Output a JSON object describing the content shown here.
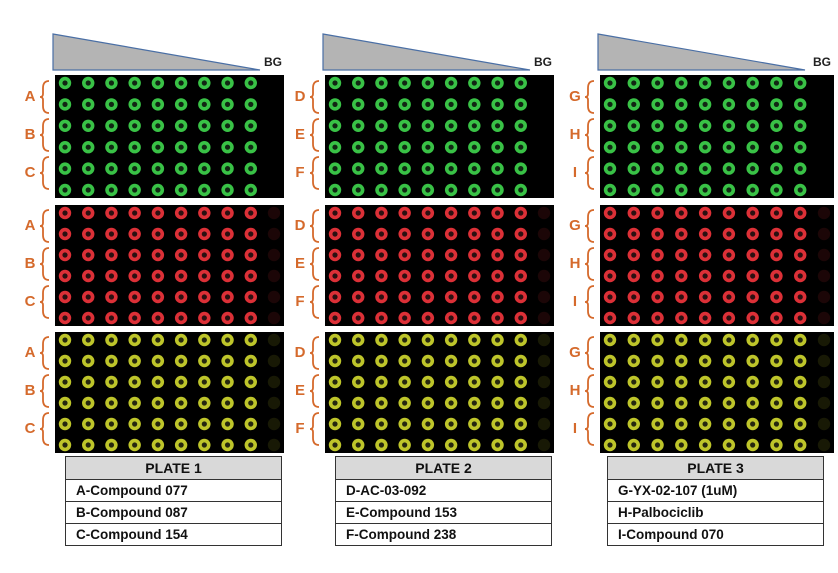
{
  "background_label": "BG",
  "colors": {
    "label_orange": "#d56a2c",
    "green_well": "#3ccc4a",
    "red_well": "#e8333a",
    "merge_well": "#c8d02c",
    "gradient_fill": "#b4b4b4",
    "gradient_edge": "#4a6fa5"
  },
  "plates": [
    {
      "title": "PLATE 1",
      "groups": [
        "A",
        "B",
        "C"
      ],
      "compounds": [
        "A-Compound  077",
        "B-Compound  087",
        "C-Compound  154"
      ]
    },
    {
      "title": "PLATE 2",
      "groups": [
        "D",
        "E",
        "F"
      ],
      "compounds": [
        "D-AC-03-092",
        "E-Compound  153",
        "F-Compound  238"
      ]
    },
    {
      "title": "PLATE 3",
      "groups": [
        "G",
        "H",
        "I"
      ],
      "compounds": [
        "G-YX-02-107 (1uM)",
        "H-Palbociclib",
        "I-Compound  070"
      ]
    }
  ]
}
